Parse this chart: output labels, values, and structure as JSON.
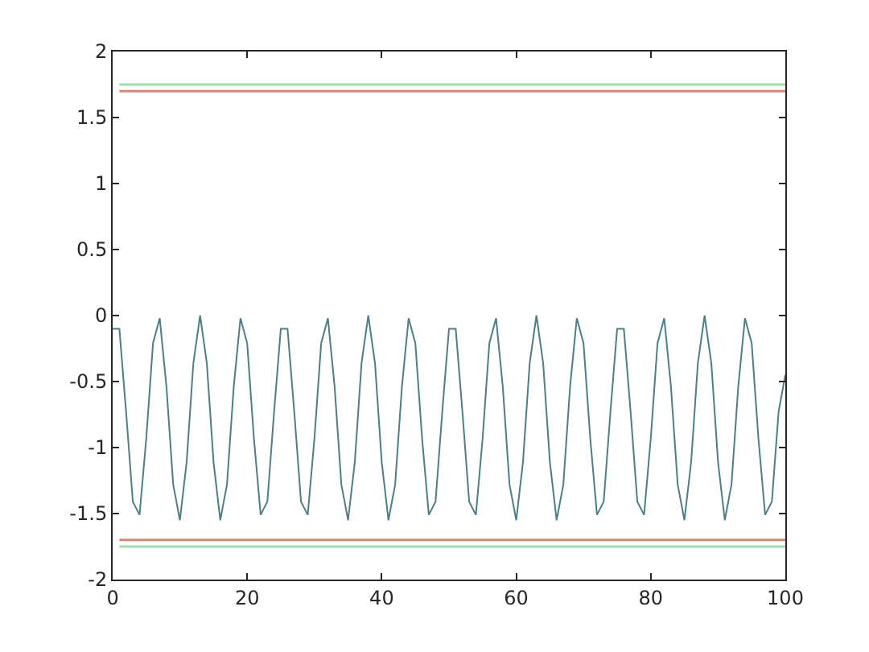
{
  "chart_data": {
    "type": "line",
    "x": [
      0,
      1,
      2,
      3,
      4,
      5,
      6,
      7,
      8,
      9,
      10,
      11,
      12,
      13,
      14,
      15,
      16,
      17,
      18,
      19,
      20,
      21,
      22,
      23,
      24,
      25,
      26,
      27,
      28,
      29,
      30,
      31,
      32,
      33,
      34,
      35,
      36,
      37,
      38,
      39,
      40,
      41,
      42,
      43,
      44,
      45,
      46,
      47,
      48,
      49,
      50,
      51,
      52,
      53,
      54,
      55,
      56,
      57,
      58,
      59,
      60,
      61,
      62,
      63,
      64,
      65,
      66,
      67,
      68,
      69,
      70,
      71,
      72,
      73,
      74,
      75,
      76,
      77,
      78,
      79,
      80,
      81,
      82,
      83,
      84,
      85,
      86,
      87,
      88,
      89,
      90,
      91,
      92,
      93,
      94,
      95,
      96,
      97,
      98,
      99,
      100
    ],
    "series": [
      {
        "color": "#4d7f86",
        "values": [
          -0.1,
          -0.1,
          -0.73,
          -1.41,
          -1.51,
          -0.93,
          -0.21,
          -0.02,
          -0.54,
          -1.28,
          -1.55,
          -1.11,
          -0.36,
          0,
          -0.36,
          -1.11,
          -1.55,
          -1.28,
          -0.54,
          -0.02,
          -0.21,
          -0.93,
          -1.51,
          -1.41,
          -0.73,
          -0.1,
          -0.1,
          -0.73,
          -1.41,
          -1.51,
          -0.93,
          -0.21,
          -0.02,
          -0.54,
          -1.28,
          -1.55,
          -1.11,
          -0.36,
          0,
          -0.36,
          -1.11,
          -1.55,
          -1.28,
          -0.54,
          -0.02,
          -0.21,
          -0.93,
          -1.51,
          -1.41,
          -0.73,
          -0.1,
          -0.1,
          -0.73,
          -1.41,
          -1.51,
          -0.93,
          -0.21,
          -0.02,
          -0.54,
          -1.28,
          -1.55,
          -1.11,
          -0.36,
          0,
          -0.36,
          -1.11,
          -1.55,
          -1.28,
          -0.54,
          -0.02,
          -0.21,
          -0.93,
          -1.51,
          -1.41,
          -0.73,
          -0.1,
          -0.1,
          -0.73,
          -1.41,
          -1.51,
          -0.93,
          -0.21,
          -0.02,
          -0.54,
          -1.28,
          -1.55,
          -1.11,
          -0.36,
          0,
          -0.36,
          -1.11,
          -1.55,
          -1.28,
          -0.54,
          -0.02,
          -0.21,
          -0.93,
          -1.51,
          -1.41,
          -0.73,
          -0.45
        ]
      }
    ],
    "ref_lines": [
      {
        "axis": "y",
        "value": 1.75,
        "color": "#a3dbb0"
      },
      {
        "axis": "y",
        "value": 1.7,
        "color": "#d08a7c"
      },
      {
        "axis": "y",
        "value": -1.7,
        "color": "#d08a7c"
      },
      {
        "axis": "y",
        "value": -1.75,
        "color": "#a3dbb0"
      }
    ],
    "xlim": [
      0,
      100
    ],
    "xticks": [
      0,
      20,
      40,
      60,
      80,
      100
    ],
    "ylim": [
      -2,
      2
    ],
    "yticks": [
      -2,
      -1.5,
      -1,
      -0.5,
      0,
      0.5,
      1,
      1.5,
      2
    ],
    "marker": "none",
    "line_style": "solid"
  }
}
